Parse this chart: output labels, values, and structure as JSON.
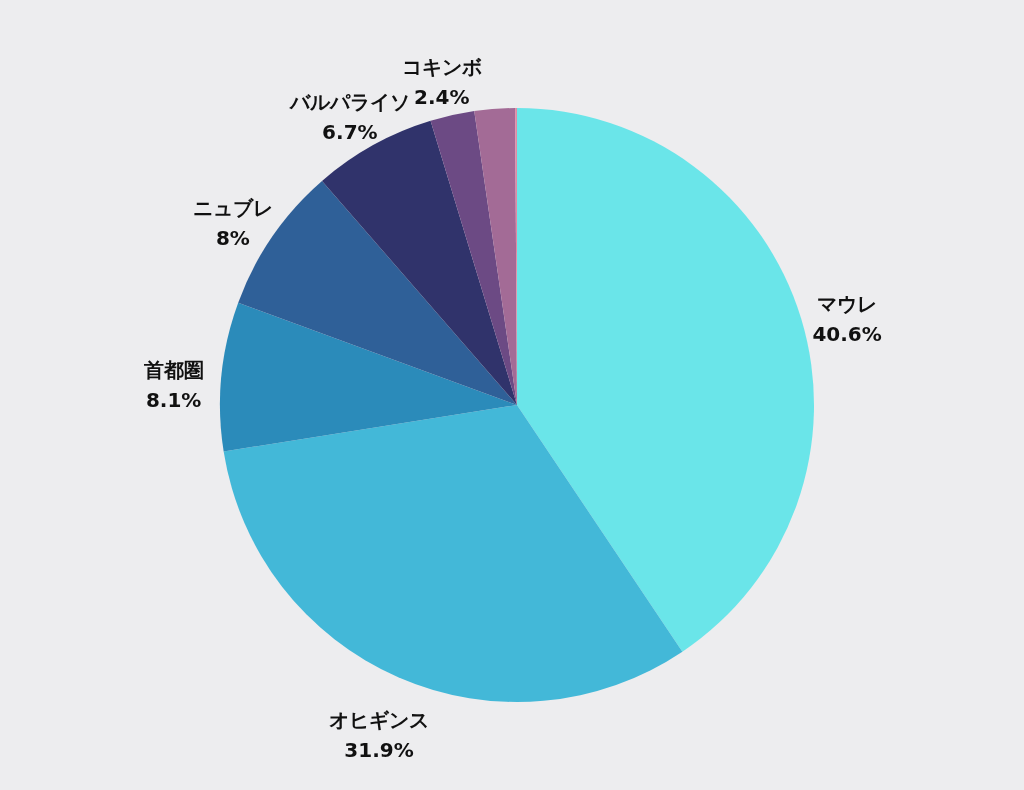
{
  "chart_data": {
    "type": "pie",
    "categories": [
      "マウレ",
      "オヒギンス",
      "首都圏",
      "ニュブレ",
      "バルパライソ",
      "コキンボ",
      null,
      null
    ],
    "values": [
      40.6,
      31.9,
      8.1,
      8,
      6.7,
      2.4,
      2.2,
      0.1
    ],
    "value_labels": [
      "40.6%",
      "31.9%",
      "8.1%",
      "8%",
      "6.7%",
      "2.4%",
      null,
      null
    ],
    "colors": [
      "#6ae5e9",
      "#43b8d8",
      "#2b8bba",
      "#2f6098",
      "#30336b",
      "#6c4a84",
      "#a36b96",
      "#e08aa6"
    ]
  }
}
